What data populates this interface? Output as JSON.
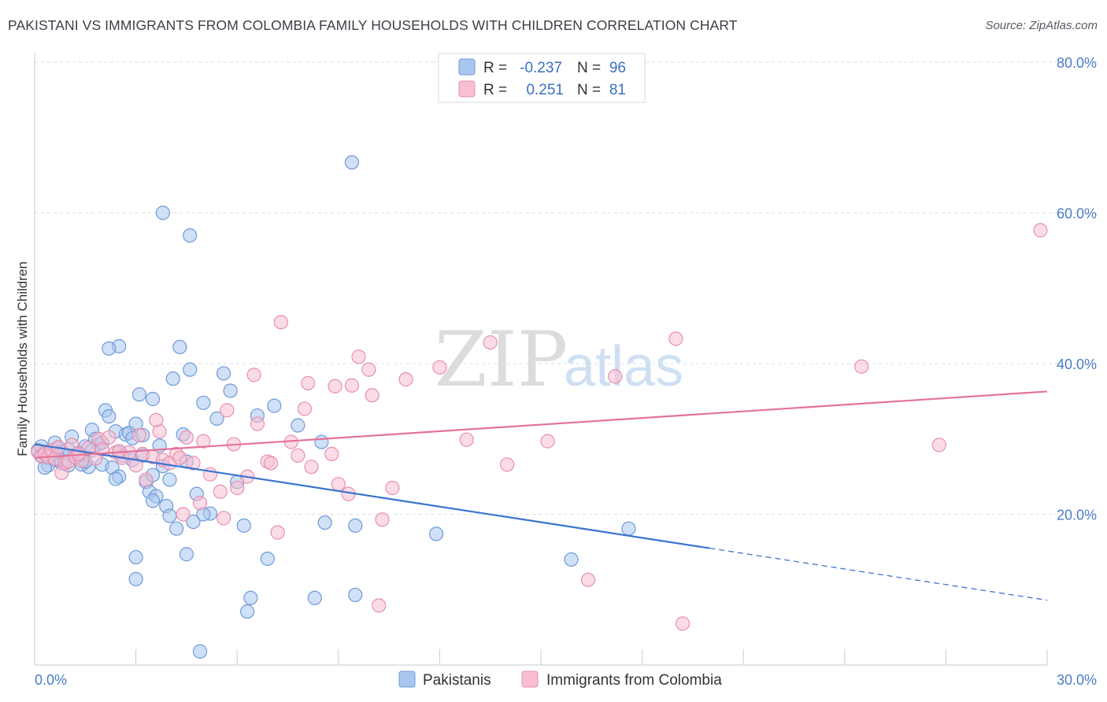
{
  "title": "PAKISTANI VS IMMIGRANTS FROM COLOMBIA FAMILY HOUSEHOLDS WITH CHILDREN CORRELATION CHART",
  "source": "Source: ZipAtlas.com",
  "watermark": {
    "zip": "ZIP",
    "atlas": "atlas"
  },
  "colors": {
    "blue_fill": "#a9c6ee",
    "blue_stroke": "#6f9ad8",
    "blue_line": "#3a74d0",
    "pink_fill": "#f7bfd1",
    "pink_stroke": "#e78fae",
    "pink_line": "#e4729a",
    "grid": "#d9dde3",
    "tick_text": "#4a7cc8"
  },
  "legend": {
    "rows": [
      {
        "r_label": "R =",
        "r_value": "-0.237",
        "n_label": "N =",
        "n_value": "96"
      },
      {
        "r_label": "R =",
        "r_value": "0.251",
        "n_label": "N =",
        "n_value": "81"
      }
    ]
  },
  "bottom_legend": [
    "Pakistanis",
    "Immigrants from Colombia"
  ],
  "chart_data": {
    "type": "scatter",
    "title": "PAKISTANI VS IMMIGRANTS FROM COLOMBIA FAMILY HOUSEHOLDS WITH CHILDREN CORRELATION CHART",
    "xlabel": "",
    "ylabel": "Family Households with Children",
    "xlim": [
      0,
      30
    ],
    "ylim": [
      0,
      80
    ],
    "x_tick_labels": [
      "0.0%",
      "30.0%"
    ],
    "y_ticks": [
      20,
      40,
      60,
      80
    ],
    "y_tick_labels": [
      "20.0%",
      "40.0%",
      "60.0%",
      "80.0%"
    ],
    "grid": true,
    "series": [
      {
        "name": "Pakistanis",
        "points": [
          [
            0.1,
            28.5
          ],
          [
            0.2,
            27.8
          ],
          [
            0.3,
            28.2
          ],
          [
            0.4,
            27.5
          ],
          [
            0.5,
            28.0
          ],
          [
            0.6,
            27.2
          ],
          [
            0.7,
            28.8
          ],
          [
            0.8,
            28.3
          ],
          [
            0.9,
            27.0
          ],
          [
            1.0,
            28.6
          ],
          [
            0.2,
            29.0
          ],
          [
            0.4,
            26.5
          ],
          [
            0.6,
            29.5
          ],
          [
            0.8,
            26.8
          ],
          [
            1.1,
            30.3
          ],
          [
            1.2,
            27.5
          ],
          [
            1.3,
            28.2
          ],
          [
            1.4,
            26.6
          ],
          [
            1.5,
            29.0
          ],
          [
            1.6,
            26.3
          ],
          [
            1.7,
            31.2
          ],
          [
            1.8,
            30.0
          ],
          [
            1.9,
            29.3
          ],
          [
            2.0,
            26.6
          ],
          [
            2.1,
            33.8
          ],
          [
            2.2,
            33.0
          ],
          [
            2.3,
            26.2
          ],
          [
            2.4,
            31.0
          ],
          [
            2.5,
            28.2
          ],
          [
            2.6,
            27.8
          ],
          [
            2.5,
            42.3
          ],
          [
            2.2,
            42.0
          ],
          [
            2.7,
            30.6
          ],
          [
            2.8,
            30.8
          ],
          [
            2.9,
            30.1
          ],
          [
            3.0,
            32.0
          ],
          [
            3.1,
            35.9
          ],
          [
            3.2,
            30.5
          ],
          [
            3.3,
            24.3
          ],
          [
            3.4,
            23.0
          ],
          [
            3.5,
            35.3
          ],
          [
            3.6,
            22.4
          ],
          [
            3.7,
            29.1
          ],
          [
            3.8,
            26.4
          ],
          [
            3.9,
            21.1
          ],
          [
            4.0,
            24.6
          ],
          [
            4.1,
            38.0
          ],
          [
            4.2,
            18.1
          ],
          [
            4.3,
            42.2
          ],
          [
            4.4,
            30.6
          ],
          [
            4.5,
            14.7
          ],
          [
            4.6,
            39.2
          ],
          [
            4.7,
            19.0
          ],
          [
            4.8,
            22.7
          ],
          [
            5.0,
            34.8
          ],
          [
            5.2,
            20.1
          ],
          [
            5.4,
            32.7
          ],
          [
            5.6,
            38.7
          ],
          [
            5.8,
            36.4
          ],
          [
            6.0,
            24.3
          ],
          [
            6.2,
            18.5
          ],
          [
            6.4,
            8.9
          ],
          [
            6.6,
            33.1
          ],
          [
            6.9,
            14.1
          ],
          [
            7.1,
            34.4
          ],
          [
            7.8,
            31.8
          ],
          [
            8.3,
            8.9
          ],
          [
            8.5,
            29.6
          ],
          [
            8.6,
            18.9
          ],
          [
            9.5,
            18.5
          ],
          [
            9.5,
            9.3
          ],
          [
            1.0,
            26.5
          ],
          [
            1.5,
            27.0
          ],
          [
            2.0,
            29.5
          ],
          [
            2.5,
            25.0
          ],
          [
            1.7,
            28.5
          ],
          [
            2.4,
            24.7
          ],
          [
            2.9,
            27.2
          ],
          [
            3.2,
            27.8
          ],
          [
            3.5,
            21.8
          ],
          [
            4.0,
            19.8
          ],
          [
            4.5,
            27.0
          ],
          [
            5.0,
            20.0
          ],
          [
            3.0,
            11.4
          ],
          [
            3.0,
            14.3
          ],
          [
            3.8,
            60.0
          ],
          [
            4.6,
            57.0
          ],
          [
            9.4,
            66.7
          ],
          [
            6.3,
            7.1
          ],
          [
            4.9,
            1.8
          ],
          [
            11.9,
            17.4
          ],
          [
            15.9,
            14.0
          ],
          [
            17.6,
            18.1
          ],
          [
            3.5,
            25.2
          ],
          [
            1.3,
            27.8
          ],
          [
            0.3,
            26.2
          ]
        ]
      },
      {
        "name": "Immigrants from Colombia",
        "points": [
          [
            0.1,
            28.3
          ],
          [
            0.2,
            27.7
          ],
          [
            0.3,
            28.0
          ],
          [
            0.4,
            27.6
          ],
          [
            0.5,
            28.5
          ],
          [
            0.6,
            27.4
          ],
          [
            0.7,
            28.9
          ],
          [
            0.8,
            25.5
          ],
          [
            0.9,
            26.8
          ],
          [
            1.0,
            27.0
          ],
          [
            1.1,
            29.2
          ],
          [
            1.2,
            27.6
          ],
          [
            1.4,
            27.1
          ],
          [
            1.6,
            28.8
          ],
          [
            1.8,
            27.4
          ],
          [
            1.9,
            30.0
          ],
          [
            2.0,
            28.6
          ],
          [
            2.2,
            30.2
          ],
          [
            2.4,
            28.2
          ],
          [
            2.6,
            27.5
          ],
          [
            2.8,
            28.2
          ],
          [
            3.0,
            26.5
          ],
          [
            3.1,
            30.5
          ],
          [
            3.2,
            28.0
          ],
          [
            3.3,
            24.6
          ],
          [
            3.5,
            27.6
          ],
          [
            3.7,
            31.0
          ],
          [
            3.8,
            27.2
          ],
          [
            4.0,
            26.8
          ],
          [
            4.2,
            28.0
          ],
          [
            4.3,
            27.5
          ],
          [
            4.5,
            30.2
          ],
          [
            4.7,
            26.8
          ],
          [
            4.9,
            21.5
          ],
          [
            5.0,
            29.7
          ],
          [
            5.2,
            25.3
          ],
          [
            5.5,
            23.0
          ],
          [
            5.6,
            19.5
          ],
          [
            5.7,
            33.8
          ],
          [
            5.9,
            29.3
          ],
          [
            6.0,
            23.5
          ],
          [
            6.3,
            25.0
          ],
          [
            6.5,
            38.5
          ],
          [
            6.6,
            32.0
          ],
          [
            6.9,
            27.0
          ],
          [
            7.2,
            17.6
          ],
          [
            7.3,
            45.5
          ],
          [
            7.6,
            29.6
          ],
          [
            7.8,
            27.8
          ],
          [
            8.0,
            34.0
          ],
          [
            8.1,
            37.4
          ],
          [
            8.2,
            26.3
          ],
          [
            8.8,
            28.0
          ],
          [
            8.9,
            37.0
          ],
          [
            9.0,
            24.0
          ],
          [
            9.3,
            22.7
          ],
          [
            9.4,
            37.1
          ],
          [
            9.6,
            40.9
          ],
          [
            9.9,
            39.2
          ],
          [
            10.0,
            35.8
          ],
          [
            10.2,
            7.9
          ],
          [
            10.3,
            19.3
          ],
          [
            10.6,
            23.5
          ],
          [
            11.0,
            37.9
          ],
          [
            12.0,
            39.5
          ],
          [
            12.8,
            29.9
          ],
          [
            13.5,
            42.8
          ],
          [
            14.0,
            26.6
          ],
          [
            15.2,
            29.7
          ],
          [
            16.4,
            11.3
          ],
          [
            17.2,
            38.3
          ],
          [
            19.0,
            43.3
          ],
          [
            19.2,
            5.5
          ],
          [
            24.5,
            39.6
          ],
          [
            26.8,
            29.2
          ],
          [
            29.8,
            57.7
          ],
          [
            3.6,
            32.5
          ],
          [
            4.4,
            20.0
          ],
          [
            2.5,
            28.4
          ],
          [
            7.0,
            26.8
          ],
          [
            1.3,
            28.0
          ]
        ]
      }
    ],
    "trendlines": [
      {
        "series": "Pakistanis",
        "x": [
          0,
          20
        ],
        "y": [
          29.3,
          15.5
        ],
        "dashed_extension": {
          "x": [
            20,
            30
          ],
          "y": [
            15.5,
            8.6
          ]
        }
      },
      {
        "series": "Immigrants from Colombia",
        "x": [
          0,
          30
        ],
        "y": [
          27.5,
          36.3
        ]
      }
    ]
  }
}
